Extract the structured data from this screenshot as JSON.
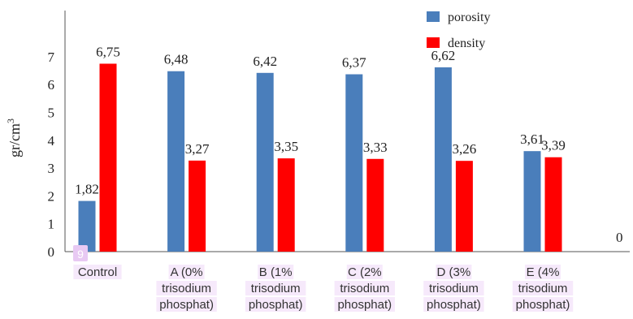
{
  "chart_data": {
    "type": "bar",
    "title": "",
    "xlabel": "",
    "ylabel": "gr/cm",
    "ylabel_superscript": "3",
    "ylim": [
      0,
      7
    ],
    "yticks": [
      "0",
      "1",
      "2",
      "3",
      "4",
      "5",
      "6",
      "7"
    ],
    "categories": [
      [
        "Control"
      ],
      [
        "A (0%",
        "trisodium",
        "phosphat)"
      ],
      [
        "B (1%",
        "trisodium",
        "phosphat)"
      ],
      [
        "C (2%",
        "trisodium",
        "phosphat)"
      ],
      [
        "D (3%",
        "trisodium",
        "phosphat)"
      ],
      [
        "E (4%",
        "trisodium",
        "phosphat)"
      ]
    ],
    "series": [
      {
        "name": "porosity",
        "color": "#4a7ebb",
        "values": [
          1.82,
          6.48,
          6.42,
          6.37,
          6.62,
          3.61
        ],
        "data_labels": [
          "1,82",
          "6,48",
          "6,42",
          "6,37",
          "6,62",
          "3,61"
        ]
      },
      {
        "name": "density",
        "color": "#ff0000",
        "values": [
          6.75,
          3.27,
          3.35,
          3.33,
          3.26,
          3.39
        ],
        "data_labels": [
          "6,75",
          "3,27",
          "3,35",
          "3,33",
          "3,26",
          "3,39"
        ]
      }
    ],
    "extra_label": "0",
    "badge": "9",
    "legend_position": "top-right",
    "grid": false
  }
}
